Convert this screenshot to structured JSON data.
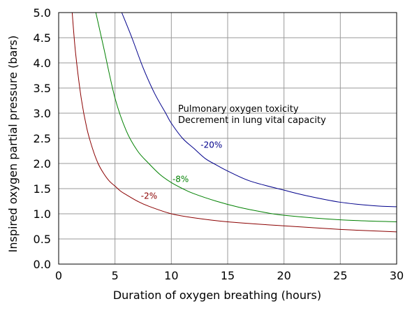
{
  "chart_data": {
    "type": "line",
    "title": "",
    "xlabel": "Duration of oxygen breathing (hours)",
    "ylabel": "Inspired oxygen partial pressure (bars)",
    "xlim": [
      0,
      30
    ],
    "ylim": [
      0,
      5.0
    ],
    "xticks": [
      "0",
      "5",
      "10",
      "15",
      "20",
      "25",
      "30"
    ],
    "yticks": [
      "0.0",
      "0.5",
      "1.0",
      "1.5",
      "2.0",
      "2.5",
      "3.0",
      "3.5",
      "4.0",
      "4.5",
      "5.0"
    ],
    "grid": true,
    "annotation_lines": [
      "Pulmonary oxygen toxicity",
      "Decrement in lung vital capacity"
    ],
    "series": [
      {
        "name": "-2%",
        "color": "#8b0000",
        "x": [
          1.2,
          1.5,
          2,
          2.5,
          3,
          3.5,
          4,
          4.5,
          5,
          5.5,
          6,
          7,
          8,
          10,
          12,
          15,
          20,
          25,
          30
        ],
        "y": [
          5.0,
          4.2,
          3.3,
          2.7,
          2.3,
          2.0,
          1.8,
          1.65,
          1.55,
          1.45,
          1.38,
          1.25,
          1.15,
          1.0,
          0.92,
          0.84,
          0.76,
          0.69,
          0.64
        ]
      },
      {
        "name": "-8%",
        "color": "#008000",
        "x": [
          3.3,
          4,
          5,
          6,
          7,
          8,
          9,
          10,
          11,
          12,
          14,
          16,
          18,
          20,
          25,
          30
        ],
        "y": [
          5.0,
          4.3,
          3.3,
          2.65,
          2.25,
          2.0,
          1.78,
          1.62,
          1.5,
          1.4,
          1.25,
          1.13,
          1.04,
          0.97,
          0.88,
          0.84
        ]
      },
      {
        "name": "-20%",
        "color": "#00008b",
        "x": [
          5.6,
          6.5,
          7.5,
          8.5,
          9.5,
          10,
          11,
          12,
          13,
          14,
          15,
          17,
          20,
          22,
          25,
          28,
          30
        ],
        "y": [
          5.0,
          4.5,
          3.9,
          3.4,
          3.0,
          2.8,
          2.5,
          2.3,
          2.1,
          1.97,
          1.85,
          1.65,
          1.47,
          1.36,
          1.23,
          1.16,
          1.14
        ]
      }
    ],
    "series_labels": [
      {
        "text": "-2%",
        "x": 7.3,
        "y": 1.3,
        "color": "#8b0000"
      },
      {
        "text": "-8%",
        "x": 10.1,
        "y": 1.63,
        "color": "#008000"
      },
      {
        "text": "-20%",
        "x": 12.6,
        "y": 2.31,
        "color": "#00008b"
      }
    ]
  }
}
